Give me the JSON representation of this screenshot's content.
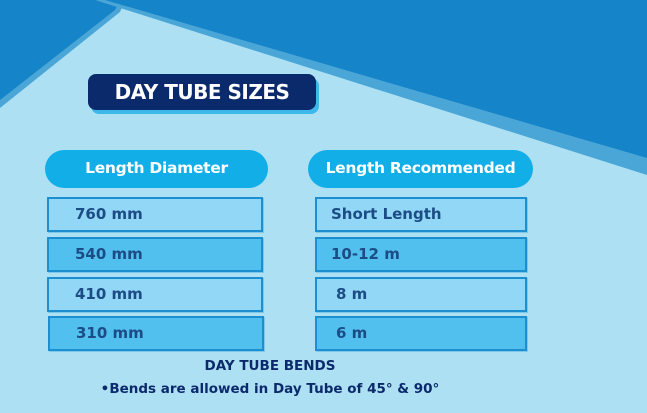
{
  "title": "DAY TUBE SIZES",
  "columns": [
    {
      "header": "Length Diameter",
      "rows": [
        "760 mm",
        "540 mm",
        "410 mm",
        "310 mm"
      ]
    },
    {
      "header": "Length Recommended",
      "rows": [
        "Short Length",
        "10-12 m",
        "8 m",
        "6 m"
      ]
    }
  ],
  "bends": {
    "title": "DAY TUBE BENDS",
    "bullet": "•",
    "item": "Bends are allowed in Day Tube of 45° & 90°"
  },
  "colors": {
    "background": "#aee0f4",
    "dark_blue": "#1684c8",
    "navy": "#0b2a6b",
    "pill": "#12aee8"
  }
}
